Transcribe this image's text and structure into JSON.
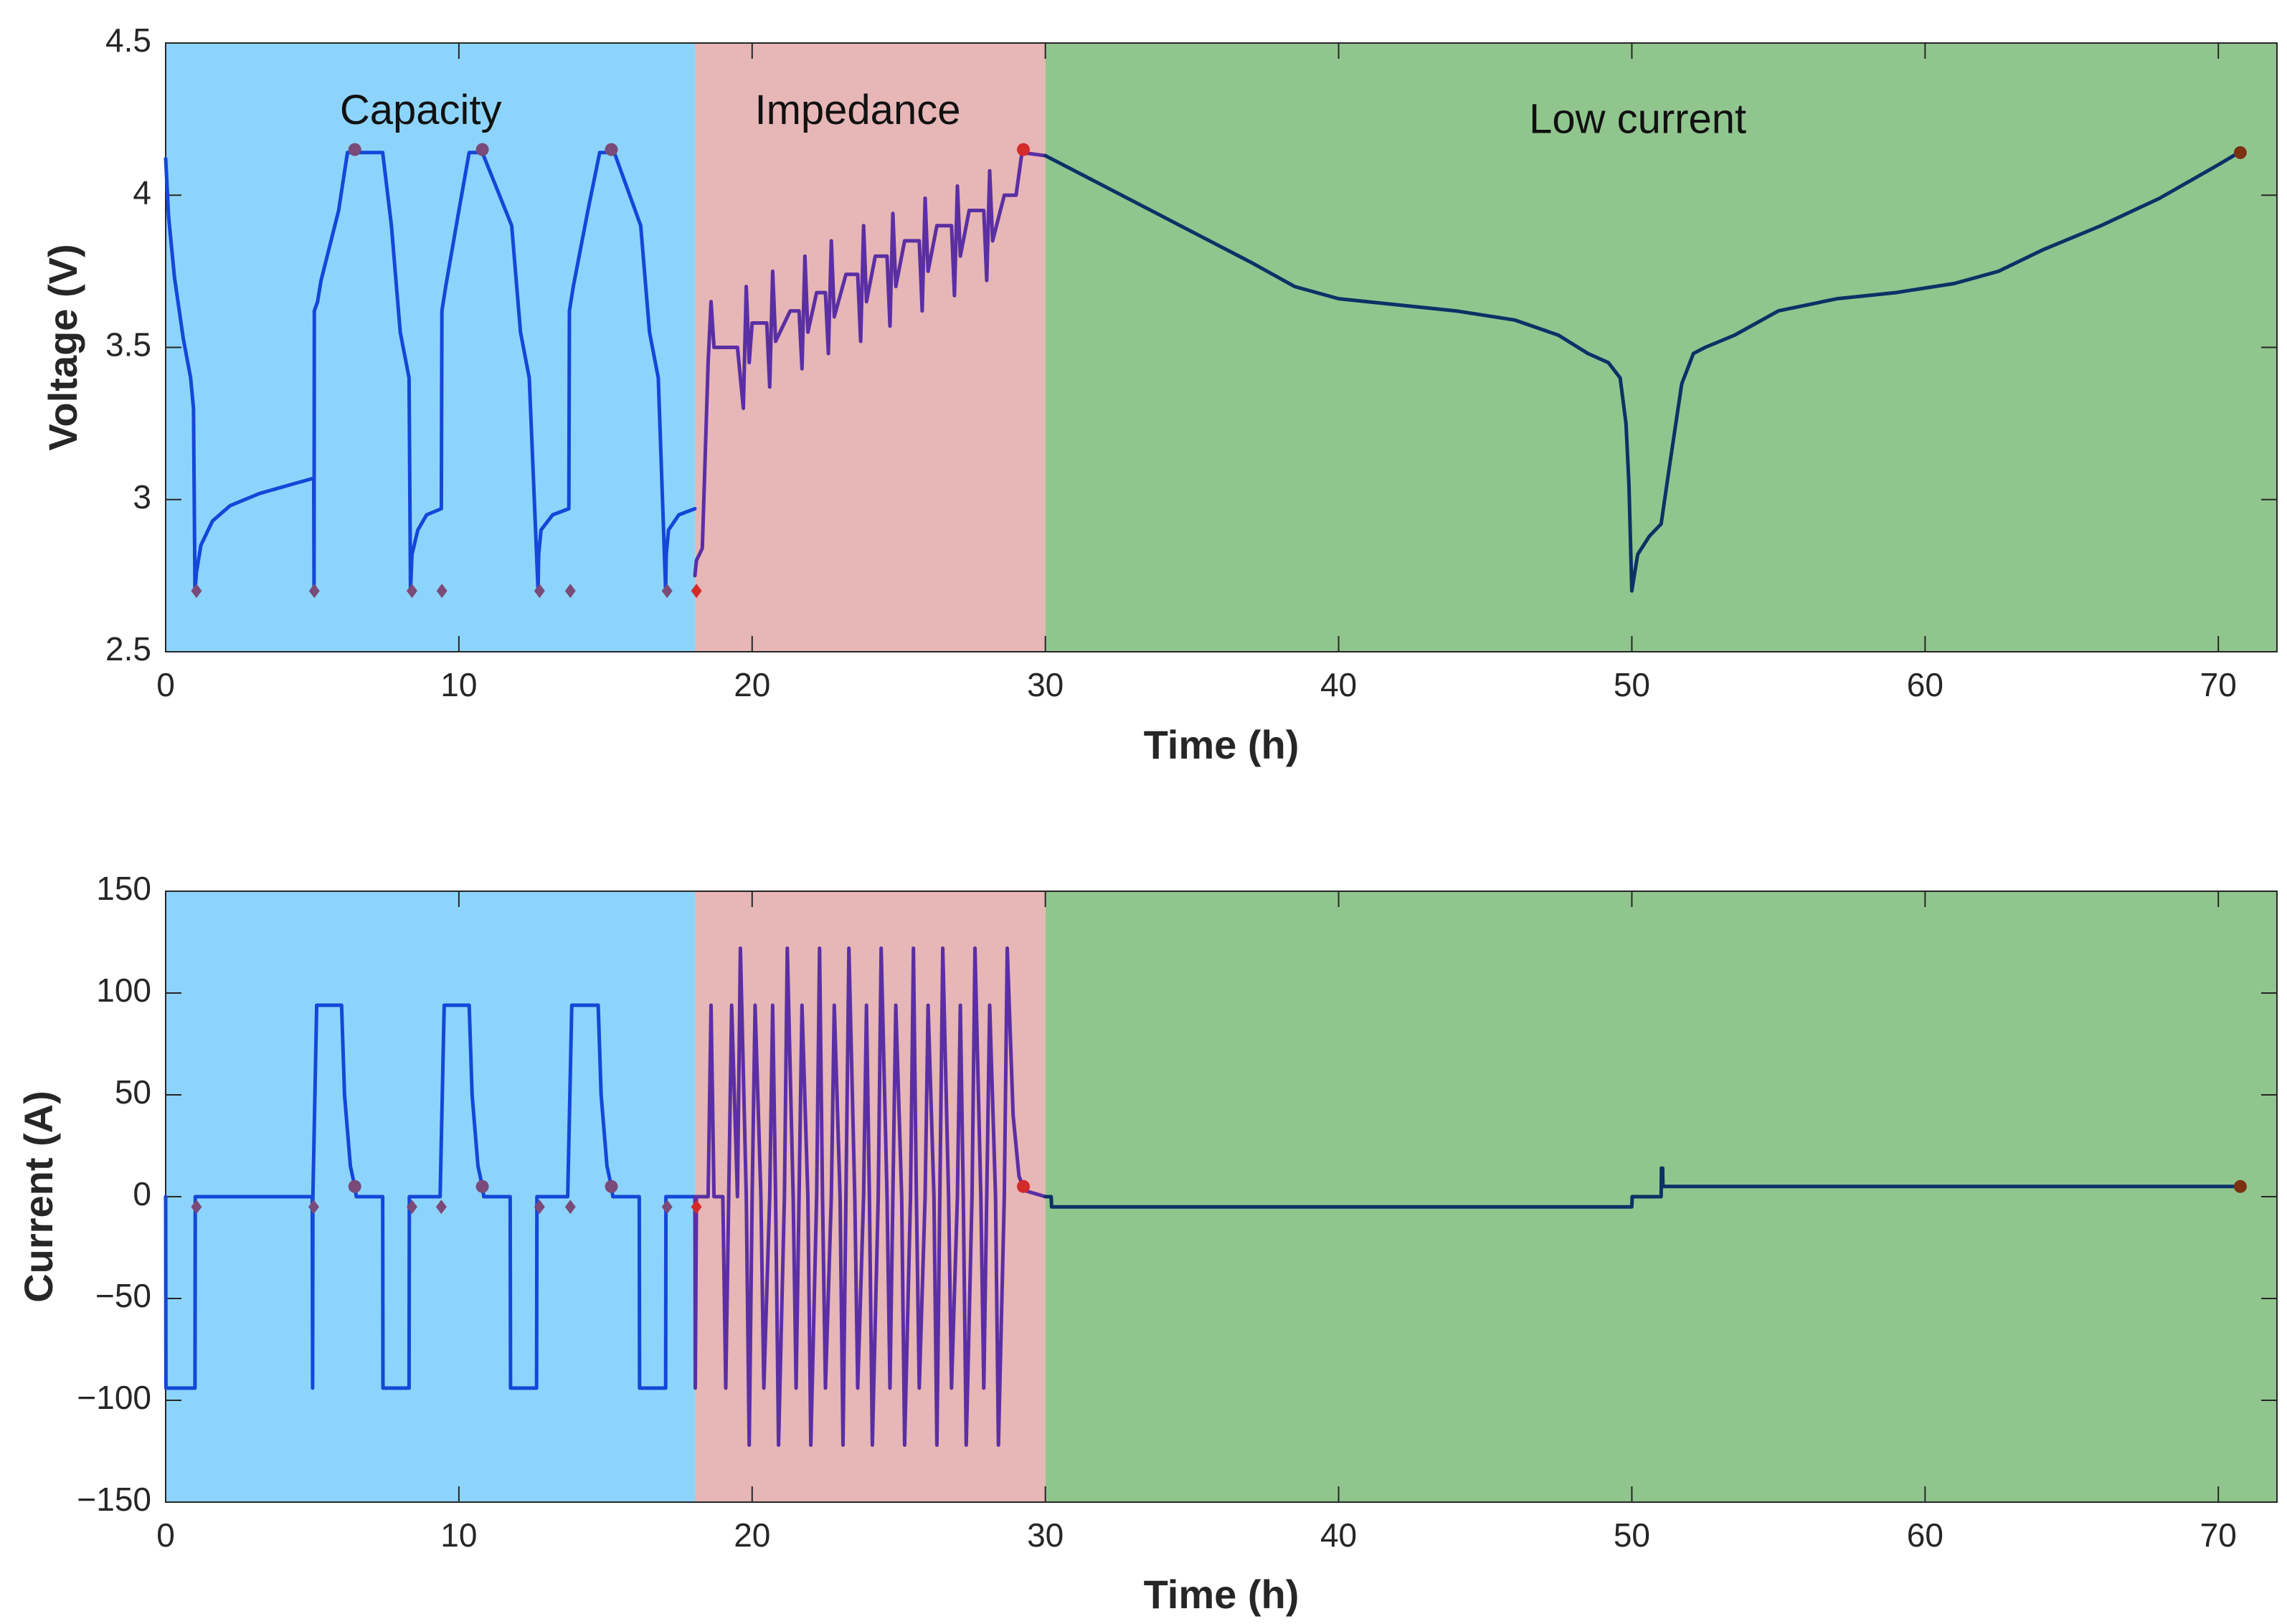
{
  "colors": {
    "capacity_bg": "#8dd4fc",
    "impedance_bg": "#e7b6b6",
    "low_current_bg": "#90c68e",
    "capacity_line": "#1447d8",
    "impedance_line": "#5a2fa4",
    "low_current_line": "#0d3166",
    "marker_purple": "#7a4a78",
    "marker_red": "#d42a2a",
    "marker_brown": "#7a3212",
    "axis": "#262626"
  },
  "chart_data": [
    {
      "id": "voltage",
      "type": "line",
      "xlabel": "Time (h)",
      "ylabel": "Voltage (V)",
      "xlim": [
        0,
        72
      ],
      "ylim": [
        2.5,
        4.5
      ],
      "xticks": [
        "0",
        "10",
        "20",
        "30",
        "40",
        "50",
        "60",
        "70"
      ],
      "yticks": [
        "2.5",
        "3",
        "3.5",
        "4",
        "4.5"
      ],
      "phases": [
        {
          "name": "Capacity",
          "start": 0,
          "end": 18.05,
          "label_x": 8.7,
          "label_y": 4.27
        },
        {
          "name": "Impedance",
          "start": 18.05,
          "end": 30,
          "label_x": 23.6,
          "label_y": 4.27
        },
        {
          "name": "Low current",
          "start": 30,
          "end": 72,
          "label_x": 50.2,
          "label_y": 4.24
        }
      ],
      "series": [
        {
          "name": "Capacity",
          "x": [
            0,
            0.1,
            0.3,
            0.6,
            0.85,
            0.95,
            1.0,
            1.05,
            1.2,
            1.6,
            2.2,
            3.2,
            4.3,
            5.05,
            5.06,
            5.07,
            5.18,
            5.3,
            5.9,
            6.2,
            6.5,
            7.4,
            7.7,
            8.0,
            8.3,
            8.35,
            8.4,
            8.6,
            8.9,
            9.4,
            9.42,
            9.55,
            10.0,
            10.35,
            10.6,
            10.8,
            11.8,
            12.1,
            12.4,
            12.7,
            12.72,
            12.8,
            13.2,
            13.75,
            13.77,
            13.9,
            14.4,
            14.8,
            15.0,
            15.3,
            16.2,
            16.5,
            16.8,
            17.05,
            17.07,
            17.15,
            17.5,
            18.05
          ],
          "y": [
            4.12,
            3.93,
            3.73,
            3.53,
            3.4,
            3.3,
            2.7,
            2.76,
            2.85,
            2.93,
            2.98,
            3.02,
            3.05,
            3.07,
            2.7,
            3.62,
            3.65,
            3.72,
            3.95,
            4.14,
            4.14,
            4.14,
            3.9,
            3.55,
            3.4,
            2.7,
            2.82,
            2.9,
            2.95,
            2.97,
            3.62,
            3.7,
            3.95,
            4.14,
            4.14,
            4.14,
            3.9,
            3.55,
            3.4,
            2.7,
            2.82,
            2.9,
            2.95,
            2.97,
            3.62,
            3.7,
            3.95,
            4.14,
            4.14,
            4.14,
            3.9,
            3.55,
            3.4,
            2.7,
            2.82,
            2.9,
            2.95,
            2.97
          ]
        },
        {
          "name": "Impedance",
          "x": [
            18.05,
            18.1,
            18.3,
            18.5,
            18.6,
            18.7,
            19.0,
            19.5,
            19.7,
            19.8,
            19.9,
            20.0,
            20.3,
            20.5,
            20.6,
            20.7,
            20.8,
            21.3,
            21.6,
            21.7,
            21.8,
            21.9,
            22.2,
            22.5,
            22.6,
            22.7,
            22.8,
            23.2,
            23.6,
            23.7,
            23.8,
            23.9,
            24.2,
            24.6,
            24.7,
            24.8,
            24.9,
            25.2,
            25.7,
            25.8,
            25.9,
            26.0,
            26.3,
            26.8,
            26.9,
            27.0,
            27.1,
            27.4,
            27.9,
            28.0,
            28.1,
            28.2,
            28.6,
            29.0,
            29.2,
            30.0
          ],
          "y": [
            2.75,
            2.8,
            2.84,
            3.45,
            3.65,
            3.5,
            3.5,
            3.5,
            3.3,
            3.7,
            3.45,
            3.58,
            3.58,
            3.58,
            3.37,
            3.75,
            3.52,
            3.62,
            3.62,
            3.43,
            3.8,
            3.55,
            3.68,
            3.68,
            3.48,
            3.85,
            3.6,
            3.74,
            3.74,
            3.52,
            3.9,
            3.65,
            3.8,
            3.8,
            3.57,
            3.94,
            3.7,
            3.85,
            3.85,
            3.62,
            3.99,
            3.75,
            3.9,
            3.9,
            3.67,
            4.03,
            3.8,
            3.95,
            3.95,
            3.72,
            4.08,
            3.85,
            4.0,
            4.0,
            4.14,
            4.13
          ]
        },
        {
          "name": "Low current",
          "x": [
            30,
            31,
            33,
            35,
            37,
            38.5,
            40,
            42,
            44,
            46,
            47.5,
            48.5,
            49.2,
            49.6,
            49.8,
            49.9,
            50.0,
            50.2,
            50.6,
            51.0,
            51.3,
            51.7,
            52.1,
            52.5,
            53.5,
            55,
            57,
            59,
            61,
            62.5,
            64,
            66,
            68,
            70,
            70.7
          ],
          "y": [
            4.13,
            4.08,
            3.98,
            3.88,
            3.78,
            3.7,
            3.66,
            3.64,
            3.62,
            3.59,
            3.54,
            3.48,
            3.45,
            3.4,
            3.25,
            3.05,
            2.7,
            2.82,
            2.88,
            2.92,
            3.12,
            3.38,
            3.48,
            3.5,
            3.54,
            3.62,
            3.66,
            3.68,
            3.71,
            3.75,
            3.82,
            3.9,
            3.99,
            4.1,
            4.14
          ]
        }
      ],
      "markers": [
        {
          "x": 1.05,
          "y": 2.7,
          "shape": "diamond",
          "color": "purple"
        },
        {
          "x": 5.07,
          "y": 2.7,
          "shape": "diamond",
          "color": "purple"
        },
        {
          "x": 8.4,
          "y": 2.7,
          "shape": "diamond",
          "color": "purple"
        },
        {
          "x": 9.42,
          "y": 2.7,
          "shape": "diamond",
          "color": "purple"
        },
        {
          "x": 12.75,
          "y": 2.7,
          "shape": "diamond",
          "color": "purple"
        },
        {
          "x": 13.8,
          "y": 2.7,
          "shape": "diamond",
          "color": "purple"
        },
        {
          "x": 17.1,
          "y": 2.7,
          "shape": "diamond",
          "color": "purple"
        },
        {
          "x": 18.1,
          "y": 2.7,
          "shape": "diamond",
          "color": "red"
        },
        {
          "x": 6.45,
          "y": 4.15,
          "shape": "circle",
          "color": "purple"
        },
        {
          "x": 10.8,
          "y": 4.15,
          "shape": "circle",
          "color": "purple"
        },
        {
          "x": 15.2,
          "y": 4.15,
          "shape": "circle",
          "color": "purple"
        },
        {
          "x": 29.25,
          "y": 4.15,
          "shape": "circle",
          "color": "red"
        },
        {
          "x": 70.75,
          "y": 4.14,
          "shape": "circle",
          "color": "brown"
        }
      ]
    },
    {
      "id": "current",
      "type": "line",
      "xlabel": "Time (h)",
      "ylabel": "Current (A)",
      "xlim": [
        0,
        72
      ],
      "ylim": [
        -150,
        150
      ],
      "xticks": [
        "0",
        "10",
        "20",
        "30",
        "40",
        "50",
        "60",
        "70"
      ],
      "yticks": [
        "−150",
        "−100",
        "−50",
        "0",
        "50",
        "100",
        "150"
      ],
      "phases": [
        {
          "name": "Capacity",
          "start": 0,
          "end": 18.05
        },
        {
          "name": "Impedance",
          "start": 18.05,
          "end": 30
        },
        {
          "name": "Low current",
          "start": 30,
          "end": 72
        }
      ],
      "series": [
        {
          "name": "Capacity",
          "x": [
            0,
            0.01,
            1.0,
            1.01,
            5.0,
            5.01,
            5.02,
            5.15,
            6.0,
            6.1,
            6.3,
            6.45,
            6.5,
            7.4,
            7.41,
            8.3,
            8.31,
            9.35,
            9.36,
            9.5,
            10.35,
            10.45,
            10.65,
            10.8,
            10.85,
            11.75,
            11.76,
            12.65,
            12.66,
            13.7,
            13.71,
            13.85,
            14.75,
            14.85,
            15.05,
            15.2,
            15.25,
            16.15,
            16.16,
            17.05,
            17.06,
            18.05
          ],
          "y": [
            0,
            -94,
            -94,
            0,
            0,
            -94,
            0,
            94,
            94,
            50,
            15,
            5,
            0,
            0,
            -94,
            -94,
            0,
            0,
            0,
            94,
            94,
            50,
            15,
            5,
            0,
            0,
            -94,
            -94,
            0,
            0,
            0,
            94,
            94,
            50,
            15,
            5,
            0,
            0,
            -94,
            -94,
            0,
            0
          ]
        },
        {
          "name": "Impedance",
          "x": [
            18.05,
            18.06,
            18.1,
            18.5,
            18.6,
            18.7,
            19.0,
            19.1,
            19.2,
            19.3,
            19.5,
            19.6,
            19.8,
            19.9,
            20.0,
            20.1,
            20.3,
            20.4,
            20.6,
            20.7,
            20.8,
            20.9,
            21.1,
            21.2,
            21.4,
            21.5,
            21.6,
            21.7,
            21.9,
            22.0,
            22.2,
            22.3,
            22.4,
            22.5,
            22.7,
            22.8,
            23.0,
            23.1,
            23.2,
            23.3,
            23.5,
            23.6,
            23.8,
            23.9,
            24.0,
            24.1,
            24.3,
            24.4,
            24.6,
            24.7,
            24.8,
            24.9,
            25.1,
            25.2,
            25.4,
            25.5,
            25.6,
            25.7,
            25.9,
            26.0,
            26.2,
            26.3,
            26.4,
            26.5,
            26.7,
            26.8,
            27.0,
            27.1,
            27.2,
            27.3,
            27.5,
            27.6,
            27.8,
            27.9,
            28.0,
            28.1,
            28.3,
            28.4,
            28.6,
            28.7,
            28.9,
            29.1,
            29.3,
            30.0
          ],
          "y": [
            0,
            -94,
            0,
            0,
            94,
            0,
            0,
            -94,
            0,
            94,
            0,
            122,
            0,
            -122,
            0,
            94,
            0,
            -94,
            0,
            94,
            0,
            -122,
            0,
            122,
            0,
            -94,
            0,
            94,
            0,
            -122,
            0,
            122,
            0,
            -94,
            0,
            94,
            0,
            -122,
            0,
            122,
            0,
            -94,
            0,
            94,
            0,
            -122,
            0,
            122,
            0,
            -94,
            0,
            94,
            0,
            -122,
            0,
            122,
            0,
            -94,
            0,
            94,
            0,
            -122,
            0,
            122,
            0,
            -94,
            0,
            94,
            0,
            -122,
            0,
            122,
            0,
            -94,
            0,
            94,
            0,
            -122,
            0,
            122,
            40,
            10,
            3,
            0
          ]
        },
        {
          "name": "Low current",
          "x": [
            30,
            30.2,
            30.21,
            50.0,
            50.01,
            51.0,
            51.01,
            51.05,
            51.06,
            70.7
          ],
          "y": [
            0,
            0,
            -5,
            -5,
            0,
            0,
            14,
            14,
            5,
            5
          ]
        }
      ],
      "markers": [
        {
          "x": 1.05,
          "y": -5,
          "shape": "diamond",
          "color": "purple"
        },
        {
          "x": 5.05,
          "y": -5,
          "shape": "diamond",
          "color": "purple"
        },
        {
          "x": 8.4,
          "y": -5,
          "shape": "diamond",
          "color": "purple"
        },
        {
          "x": 9.4,
          "y": -5,
          "shape": "diamond",
          "color": "purple"
        },
        {
          "x": 12.75,
          "y": -5,
          "shape": "diamond",
          "color": "purple"
        },
        {
          "x": 13.8,
          "y": -5,
          "shape": "diamond",
          "color": "purple"
        },
        {
          "x": 17.1,
          "y": -5,
          "shape": "diamond",
          "color": "purple"
        },
        {
          "x": 18.1,
          "y": -5,
          "shape": "diamond",
          "color": "red"
        },
        {
          "x": 6.45,
          "y": 5,
          "shape": "circle",
          "color": "purple"
        },
        {
          "x": 10.8,
          "y": 5,
          "shape": "circle",
          "color": "purple"
        },
        {
          "x": 15.2,
          "y": 5,
          "shape": "circle",
          "color": "purple"
        },
        {
          "x": 29.25,
          "y": 5,
          "shape": "circle",
          "color": "red"
        },
        {
          "x": 70.75,
          "y": 5,
          "shape": "circle",
          "color": "brown"
        }
      ]
    }
  ]
}
